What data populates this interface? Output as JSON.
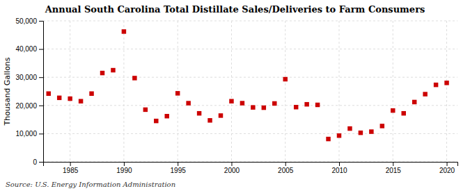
{
  "chart_data": {
    "type": "scatter",
    "title": "Annual South Carolina Total Distillate Sales/Deliveries to Farm Consumers",
    "ylabel": "Thousand Gallons",
    "annotations": [
      "Source: U.S. Energy Information Administration"
    ],
    "x": [
      1983,
      1984,
      1985,
      1986,
      1987,
      1988,
      1989,
      1990,
      1991,
      1992,
      1993,
      1994,
      1995,
      1996,
      1997,
      1998,
      1999,
      2000,
      2001,
      2002,
      2003,
      2004,
      2005,
      2006,
      2007,
      2008,
      2009,
      2010,
      2011,
      2012,
      2013,
      2014,
      2015,
      2016,
      2017,
      2018,
      2019,
      2020
    ],
    "values": [
      24200,
      22700,
      22400,
      21500,
      24200,
      31500,
      32500,
      46200,
      29700,
      18500,
      14500,
      16200,
      24300,
      20800,
      17200,
      14700,
      16400,
      21500,
      20800,
      19300,
      19200,
      20700,
      29300,
      19400,
      20400,
      20200,
      8100,
      9300,
      11800,
      10300,
      10700,
      12700,
      18200,
      17200,
      21200,
      24000,
      27300,
      28000
    ],
    "color": "#cc0000",
    "marker": "square",
    "xlim": [
      1982.5,
      2021
    ],
    "ylim": [
      0,
      50000
    ],
    "xticks": [
      1985,
      1990,
      1995,
      2000,
      2005,
      2010,
      2015,
      2020
    ],
    "yticks": [
      0,
      {
        "value": 10000,
        "label": "10,000"
      },
      {
        "value": 20000,
        "label": "20,000"
      },
      {
        "value": 30000,
        "label": "30,000"
      },
      {
        "value": 40000,
        "label": "40,000"
      },
      {
        "value": 50000,
        "label": "50,000"
      }
    ],
    "grid": true
  }
}
